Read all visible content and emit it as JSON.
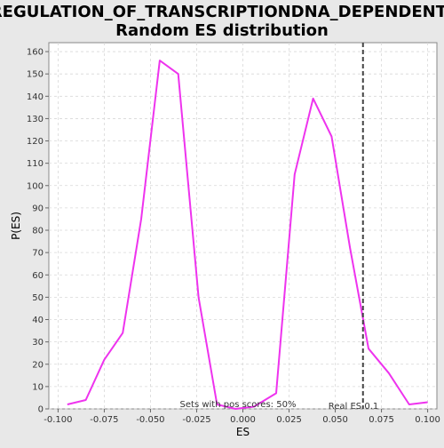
{
  "chart_data": {
    "type": "line",
    "title_line1": "REGULATION_OF_TRANSCRIPTIONDNA_DEPENDENT:",
    "title_line2": "Random ES distribution",
    "xlabel": "ES",
    "ylabel": "P(ES)",
    "xlim": [
      -0.105,
      0.105
    ],
    "ylim": [
      0,
      164
    ],
    "x_ticks": [
      -0.1,
      -0.075,
      -0.05,
      -0.025,
      0.0,
      0.025,
      0.05,
      0.075,
      0.1
    ],
    "x_tick_labels": [
      "-0.100",
      "-0.075",
      "-0.050",
      "-0.025",
      "0.000",
      "0.025",
      "0.050",
      "0.075",
      "0.100"
    ],
    "y_ticks": [
      0,
      10,
      20,
      30,
      40,
      50,
      60,
      70,
      80,
      90,
      100,
      110,
      120,
      130,
      140,
      150,
      160
    ],
    "y_tick_labels": [
      "0",
      "10",
      "20",
      "30",
      "40",
      "50",
      "60",
      "70",
      "80",
      "90",
      "100",
      "110",
      "120",
      "130",
      "140",
      "150",
      "160"
    ],
    "grid": true,
    "series": [
      {
        "color": "#ee33ee",
        "x": [
          -0.095,
          -0.085,
          -0.075,
          -0.065,
          -0.055,
          -0.045,
          -0.035,
          -0.024,
          -0.014,
          -0.004,
          0.006,
          0.018,
          0.028,
          0.038,
          0.048,
          0.058,
          0.068,
          0.079,
          0.09,
          0.1
        ],
        "y": [
          2,
          4,
          22,
          34,
          85,
          156,
          150,
          50,
          2,
          0,
          1,
          7,
          105,
          139,
          122,
          72,
          27,
          16,
          2,
          3
        ]
      }
    ],
    "real_es": 0.065,
    "real_es_color": "#444444",
    "annotations": {
      "real_es_label": "Real ES 0.1",
      "pos_scores_label": "Sets with pos scores: 50%"
    }
  }
}
